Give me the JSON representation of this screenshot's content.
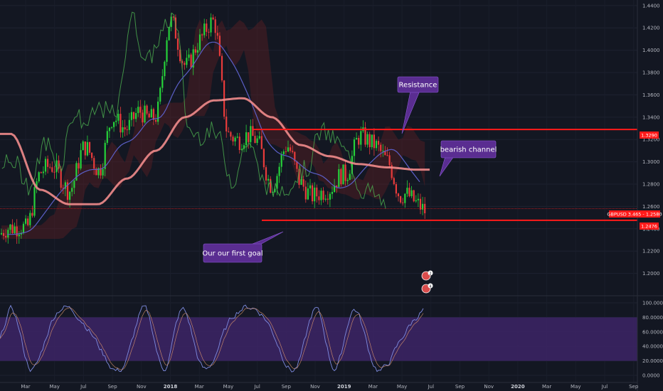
{
  "chart_data": {
    "type": "line",
    "symbol": "GBPUSD",
    "price_axis": {
      "range": [
        1.18,
        1.445
      ],
      "ticks": [
        "1.4400",
        "1.4200",
        "1.4000",
        "1.3800",
        "1.3600",
        "1.3400",
        "1.3200",
        "1.3000",
        "1.2800",
        "1.2600",
        "1.2400",
        "1.2200",
        "1.2000"
      ]
    },
    "time_axis": {
      "labels": [
        "Mar",
        "May",
        "Jul",
        "Sep",
        "Nov",
        "2018",
        "Mar",
        "May",
        "Jul",
        "Sep",
        "Nov",
        "2019",
        "Mar",
        "May",
        "Jul",
        "Sep",
        "Nov",
        "2020",
        "Mar",
        "May",
        "Jul",
        "Sep"
      ],
      "bold": [
        "2018",
        "2019",
        "2020"
      ]
    },
    "close_series": {
      "name": "GBPUSD",
      "x": [
        "2017-02",
        "2017-03",
        "2017-04",
        "2017-05",
        "2017-06",
        "2017-07",
        "2017-08",
        "2017-09",
        "2017-10",
        "2017-11",
        "2017-12",
        "2018-01",
        "2018-02",
        "2018-03",
        "2018-04",
        "2018-05",
        "2018-06",
        "2018-07",
        "2018-08",
        "2018-09",
        "2018-10",
        "2018-11",
        "2018-12",
        "2019-01",
        "2019-02",
        "2019-03",
        "2019-04",
        "2019-05",
        "2019-06"
      ],
      "y": [
        1.235,
        1.245,
        1.29,
        1.29,
        1.28,
        1.31,
        1.29,
        1.345,
        1.325,
        1.345,
        1.345,
        1.42,
        1.39,
        1.41,
        1.42,
        1.33,
        1.32,
        1.315,
        1.285,
        1.31,
        1.28,
        1.275,
        1.27,
        1.29,
        1.325,
        1.31,
        1.305,
        1.27,
        1.258
      ]
    },
    "ma_long": {
      "x": [
        "2017-02",
        "2017-04",
        "2017-06",
        "2017-08",
        "2017-10",
        "2017-12",
        "2018-02",
        "2018-04",
        "2018-06",
        "2018-08",
        "2018-10",
        "2018-12",
        "2019-02",
        "2019-04",
        "2019-06"
      ],
      "y": [
        1.325,
        1.275,
        1.262,
        1.262,
        1.285,
        1.31,
        1.34,
        1.355,
        1.357,
        1.34,
        1.315,
        1.305,
        1.298,
        1.295,
        1.293
      ]
    },
    "levels": {
      "resistance": "1.3290",
      "current": "1.2580",
      "support": "1.2476"
    },
    "current_label": "GBPUSD 3.465 - 1.2580",
    "annotations": [
      "Resistance",
      "bearish channel",
      "Our our first goal"
    ],
    "oscillator": {
      "ticks": [
        "100.0000",
        "80.0000",
        "60.0000",
        "40.0000",
        "20.0000",
        "0.0000"
      ],
      "band": [
        20,
        80
      ],
      "range": [
        0,
        100
      ]
    },
    "event_badges": [
      "2",
      "4"
    ]
  },
  "colors": {
    "background": "#131722",
    "grid": "#1f2433",
    "level_line": "#ff1a1a",
    "ma_long": "#f28c8c",
    "ma_mid": "#5b5fc7",
    "callout": "#5a2d91",
    "oscillator_band": "#4a2a7a",
    "up_candle": "#26d13a",
    "down_candle": "#e83b3b"
  }
}
